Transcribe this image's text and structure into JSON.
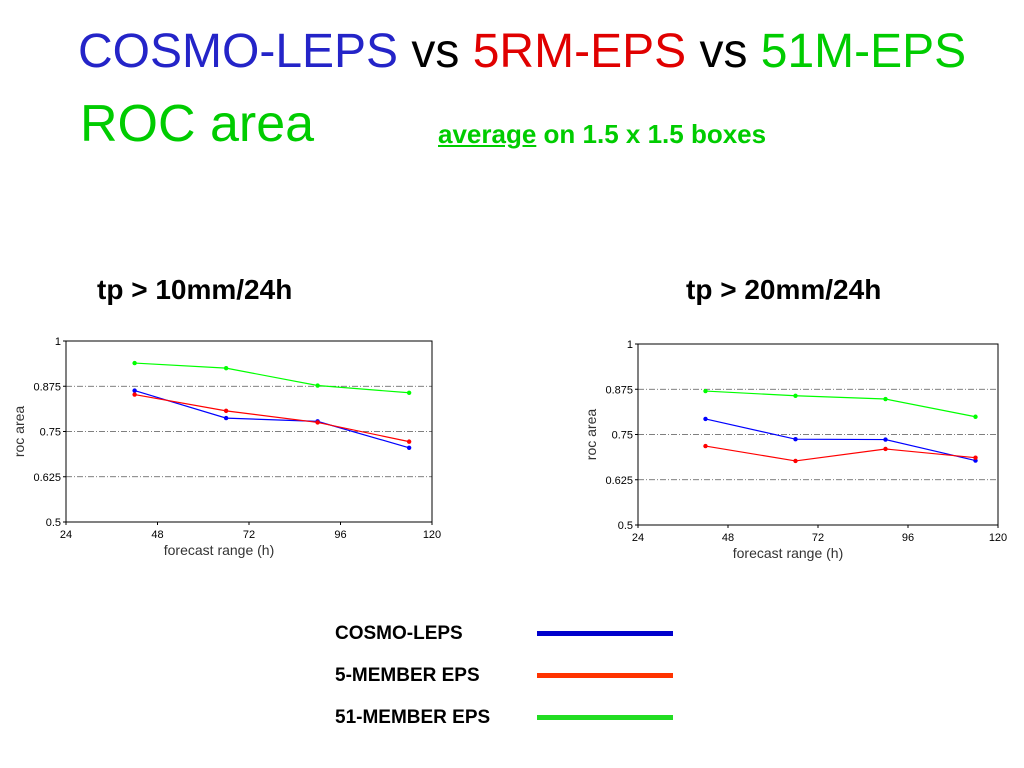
{
  "title": {
    "part1": "COSMO-LEPS",
    "vs1": " vs ",
    "part2": "5RM-EPS",
    "vs2": " vs ",
    "part3": "51M-EPS",
    "line2": "ROC area",
    "subtitle_underlined": "average",
    "subtitle_rest": " on 1.5 x 1.5 boxes"
  },
  "colors": {
    "blue_title": "#2424c8",
    "red_title": "#e00000",
    "green_title": "#00cc00",
    "cosmo_leps": "#0000ff",
    "eps_5": "#ff0000",
    "eps_51": "#00ff00"
  },
  "chart_data": [
    {
      "type": "line",
      "title": "tp > 10mm/24h",
      "xlabel": "forecast range (h)",
      "ylabel": "roc area",
      "xlim": [
        24,
        120
      ],
      "ylim": [
        0.5,
        1
      ],
      "xticks": [
        "24",
        "48",
        "72",
        "96",
        "120"
      ],
      "yticks": [
        "0.5",
        "0.625",
        "0.75",
        "0.875",
        "1"
      ],
      "series": [
        {
          "name": "COSMO-LEPS",
          "x": [
            42,
            66,
            90,
            114
          ],
          "values": [
            0.863,
            0.787,
            0.778,
            0.705
          ]
        },
        {
          "name": "5-MEMBER EPS",
          "x": [
            42,
            66,
            90,
            114
          ],
          "values": [
            0.852,
            0.807,
            0.775,
            0.722
          ]
        },
        {
          "name": "51-MEMBER EPS",
          "x": [
            42,
            66,
            90,
            114
          ],
          "values": [
            0.939,
            0.925,
            0.877,
            0.857
          ]
        }
      ]
    },
    {
      "type": "line",
      "title": "tp > 20mm/24h",
      "xlabel": "forecast range (h)",
      "ylabel": "roc area",
      "xlim": [
        24,
        120
      ],
      "ylim": [
        0.5,
        1
      ],
      "xticks": [
        "24",
        "48",
        "72",
        "96",
        "120"
      ],
      "yticks": [
        "0.5",
        "0.625",
        "0.75",
        "0.875",
        "1"
      ],
      "series": [
        {
          "name": "COSMO-LEPS",
          "x": [
            42,
            66,
            90,
            114
          ],
          "values": [
            0.793,
            0.737,
            0.736,
            0.678
          ]
        },
        {
          "name": "5-MEMBER EPS",
          "x": [
            42,
            66,
            90,
            114
          ],
          "values": [
            0.718,
            0.677,
            0.71,
            0.686
          ]
        },
        {
          "name": "51-MEMBER EPS",
          "x": [
            42,
            66,
            90,
            114
          ],
          "values": [
            0.87,
            0.857,
            0.848,
            0.799
          ]
        }
      ]
    }
  ],
  "legend": [
    {
      "label": "COSMO-LEPS",
      "color": "#0000cc"
    },
    {
      "label": "5-MEMBER EPS",
      "color": "#ff3300"
    },
    {
      "label": "51-MEMBER EPS",
      "color": "#22dd22"
    }
  ]
}
